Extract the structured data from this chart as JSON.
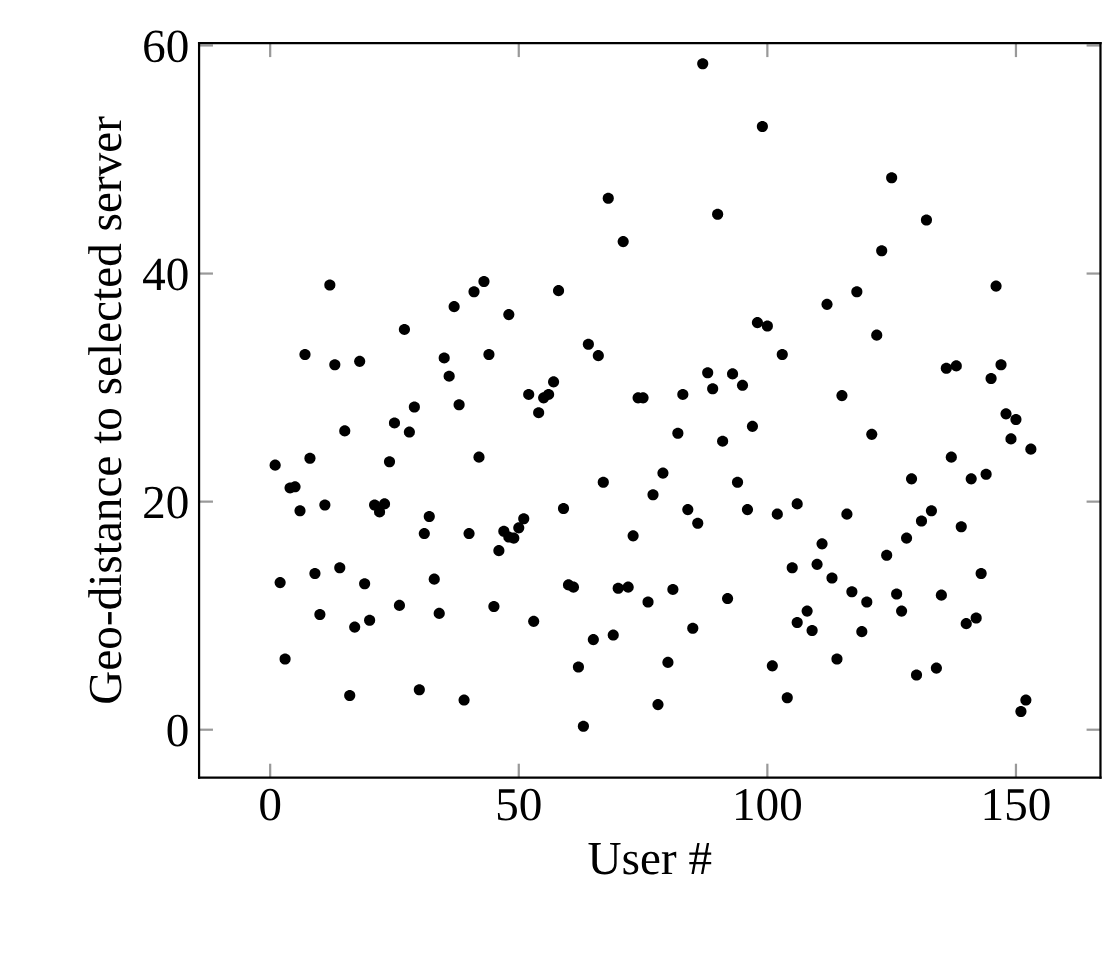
{
  "chart_data": {
    "type": "scatter",
    "xlabel": "User #",
    "ylabel": "Geo-distance to selected server",
    "xlim": [
      -14.3,
      167
    ],
    "ylim": [
      -4.2,
      60.2
    ],
    "xticks": [
      0,
      50,
      100,
      150
    ],
    "yticks": [
      0,
      20,
      40,
      60
    ],
    "grid": false,
    "marker": "circle",
    "series": [
      {
        "color": "#000000",
        "x": [
          12,
          7,
          13,
          18,
          27,
          37,
          41,
          43,
          48,
          35,
          36,
          44,
          29,
          25,
          28,
          38,
          15,
          1,
          8,
          24,
          42,
          4,
          5,
          6,
          11,
          21,
          22,
          23,
          32,
          31,
          40,
          47,
          48,
          46,
          2,
          9,
          14,
          19,
          33,
          10,
          17,
          20,
          26,
          34,
          45,
          3,
          16,
          30,
          39,
          87,
          99,
          68,
          90,
          71,
          58,
          98,
          100,
          103,
          64,
          66,
          88,
          93,
          89,
          95,
          83,
          74,
          75,
          57,
          56,
          55,
          52,
          54,
          97,
          82,
          91,
          67,
          79,
          77,
          94,
          59,
          84,
          86,
          96,
          102,
          106,
          51,
          50,
          49,
          73,
          60,
          61,
          70,
          72,
          81,
          76,
          92,
          105,
          53,
          65,
          69,
          85,
          106,
          62,
          80,
          101,
          104,
          78,
          63,
          125,
          132,
          123,
          112,
          118,
          146,
          122,
          136,
          138,
          147,
          145,
          115,
          148,
          150,
          149,
          153,
          121,
          137,
          129,
          141,
          144,
          116,
          111,
          133,
          131,
          128,
          139,
          110,
          113,
          124,
          143,
          117,
          120,
          126,
          127,
          135,
          108,
          109,
          119,
          140,
          142,
          114,
          130,
          134,
          152,
          151
        ],
        "values": [
          39.0,
          32.9,
          32.0,
          32.3,
          35.1,
          37.1,
          38.4,
          39.3,
          36.4,
          32.6,
          31.0,
          32.9,
          28.3,
          26.9,
          26.1,
          28.5,
          26.2,
          23.2,
          23.8,
          23.5,
          23.9,
          21.2,
          21.3,
          19.2,
          19.7,
          19.7,
          19.1,
          19.8,
          18.7,
          17.2,
          17.2,
          17.4,
          16.9,
          15.7,
          12.9,
          13.7,
          14.2,
          12.8,
          13.2,
          10.1,
          9.0,
          9.6,
          10.9,
          10.2,
          10.8,
          6.2,
          3.0,
          3.5,
          2.6,
          58.4,
          52.9,
          46.6,
          45.2,
          42.8,
          38.5,
          35.7,
          35.4,
          32.9,
          33.8,
          32.8,
          31.3,
          31.2,
          29.9,
          30.2,
          29.4,
          29.1,
          29.1,
          30.5,
          29.4,
          29.1,
          29.4,
          27.8,
          26.6,
          26.0,
          25.3,
          21.7,
          22.5,
          20.6,
          21.7,
          19.4,
          19.3,
          18.1,
          19.3,
          18.9,
          19.8,
          18.5,
          17.7,
          16.8,
          17.0,
          12.7,
          12.5,
          12.4,
          12.5,
          12.3,
          11.2,
          11.5,
          14.2,
          9.5,
          7.9,
          8.3,
          8.9,
          9.4,
          5.5,
          5.9,
          5.6,
          2.8,
          2.2,
          0.3,
          48.4,
          44.7,
          42.0,
          37.3,
          38.4,
          38.9,
          34.6,
          31.7,
          31.9,
          32.0,
          30.8,
          29.3,
          27.7,
          27.2,
          25.5,
          24.6,
          25.9,
          23.9,
          22.0,
          22.0,
          22.4,
          18.9,
          16.3,
          19.2,
          18.3,
          16.8,
          17.8,
          14.5,
          13.3,
          15.3,
          13.7,
          12.1,
          11.2,
          11.9,
          10.4,
          11.8,
          10.4,
          8.7,
          8.6,
          9.3,
          9.8,
          6.2,
          4.8,
          5.4,
          2.6,
          1.6
        ]
      }
    ]
  }
}
